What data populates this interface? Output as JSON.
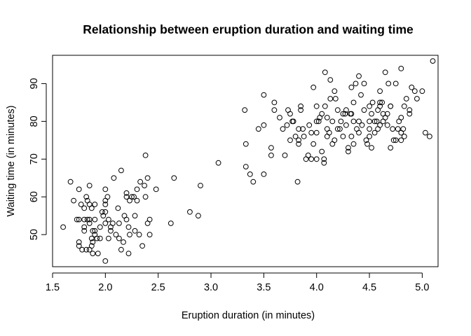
{
  "chart_data": {
    "type": "scatter",
    "title": "Relationship between eruption duration and waiting time",
    "xlabel": "Eruption duration (in minutes)",
    "ylabel": "Waiting time (in minutes)",
    "xlim": [
      1.5,
      5.15
    ],
    "ylim": [
      41.5,
      97.5
    ],
    "xticks": [
      1.5,
      2.0,
      2.5,
      3.0,
      3.5,
      4.0,
      4.5,
      5.0
    ],
    "yticks": [
      50,
      60,
      70,
      80,
      90
    ],
    "xtick_labels": [
      "1.5",
      "2.0",
      "2.5",
      "3.0",
      "3.5",
      "4.0",
      "4.5",
      "5.0"
    ],
    "ytick_labels": [
      "50",
      "60",
      "70",
      "80",
      "90"
    ],
    "grid": false,
    "marker": "open-circle",
    "points": [
      [
        1.6,
        52
      ],
      [
        1.67,
        64
      ],
      [
        1.7,
        59
      ],
      [
        1.73,
        54
      ],
      [
        1.75,
        48
      ],
      [
        1.75,
        47
      ],
      [
        1.75,
        54
      ],
      [
        1.75,
        62
      ],
      [
        1.77,
        58
      ],
      [
        1.78,
        46
      ],
      [
        1.8,
        51
      ],
      [
        1.8,
        54
      ],
      [
        1.8,
        52
      ],
      [
        1.8,
        57
      ],
      [
        1.82,
        60
      ],
      [
        1.82,
        46
      ],
      [
        1.83,
        59
      ],
      [
        1.83,
        54
      ],
      [
        1.85,
        63
      ],
      [
        1.85,
        58
      ],
      [
        1.85,
        54
      ],
      [
        1.85,
        46
      ],
      [
        1.85,
        53
      ],
      [
        1.87,
        57
      ],
      [
        1.87,
        49
      ],
      [
        1.87,
        47
      ],
      [
        1.88,
        51
      ],
      [
        1.88,
        48
      ],
      [
        1.88,
        45
      ],
      [
        1.9,
        58
      ],
      [
        1.9,
        54
      ],
      [
        1.9,
        51
      ],
      [
        1.9,
        50
      ],
      [
        1.92,
        49
      ],
      [
        1.93,
        45
      ],
      [
        1.95,
        52
      ],
      [
        1.95,
        49
      ],
      [
        1.97,
        56
      ],
      [
        1.98,
        55
      ],
      [
        2.0,
        62
      ],
      [
        2.0,
        59
      ],
      [
        2.0,
        58
      ],
      [
        2.0,
        56
      ],
      [
        2.0,
        53
      ],
      [
        2.0,
        43
      ],
      [
        2.02,
        60
      ],
      [
        2.03,
        54
      ],
      [
        2.03,
        49
      ],
      [
        2.05,
        52
      ],
      [
        2.05,
        51
      ],
      [
        2.07,
        53
      ],
      [
        2.08,
        65
      ],
      [
        2.1,
        50
      ],
      [
        2.12,
        57
      ],
      [
        2.13,
        53
      ],
      [
        2.13,
        49
      ],
      [
        2.15,
        67
      ],
      [
        2.15,
        46
      ],
      [
        2.17,
        48
      ],
      [
        2.18,
        55
      ],
      [
        2.2,
        61
      ],
      [
        2.2,
        60
      ],
      [
        2.2,
        54
      ],
      [
        2.22,
        52
      ],
      [
        2.22,
        45
      ],
      [
        2.23,
        59
      ],
      [
        2.23,
        50
      ],
      [
        2.25,
        60
      ],
      [
        2.27,
        60
      ],
      [
        2.28,
        55
      ],
      [
        2.28,
        51
      ],
      [
        2.3,
        59
      ],
      [
        2.3,
        62
      ],
      [
        2.32,
        50
      ],
      [
        2.33,
        64
      ],
      [
        2.35,
        47
      ],
      [
        2.37,
        63
      ],
      [
        2.38,
        71
      ],
      [
        2.38,
        60
      ],
      [
        2.4,
        53
      ],
      [
        2.4,
        65
      ],
      [
        2.42,
        54
      ],
      [
        2.42,
        50
      ],
      [
        2.48,
        62
      ],
      [
        2.62,
        53
      ],
      [
        2.65,
        65
      ],
      [
        2.8,
        56
      ],
      [
        2.88,
        55
      ],
      [
        2.9,
        63
      ],
      [
        3.07,
        69
      ],
      [
        3.32,
        83
      ],
      [
        3.33,
        74
      ],
      [
        3.33,
        68
      ],
      [
        3.37,
        66
      ],
      [
        3.4,
        64
      ],
      [
        3.45,
        78
      ],
      [
        3.5,
        87
      ],
      [
        3.5,
        79
      ],
      [
        3.5,
        66
      ],
      [
        3.57,
        71
      ],
      [
        3.57,
        73
      ],
      [
        3.6,
        83
      ],
      [
        3.6,
        85
      ],
      [
        3.65,
        81
      ],
      [
        3.7,
        71
      ],
      [
        3.72,
        79
      ],
      [
        3.73,
        83
      ],
      [
        3.75,
        75
      ],
      [
        3.75,
        82
      ],
      [
        3.77,
        80
      ],
      [
        3.78,
        80
      ],
      [
        3.8,
        76
      ],
      [
        3.82,
        64
      ],
      [
        3.83,
        78
      ],
      [
        3.83,
        74
      ],
      [
        3.83,
        75
      ],
      [
        3.85,
        83
      ],
      [
        3.85,
        84
      ],
      [
        3.87,
        78
      ],
      [
        3.88,
        76
      ],
      [
        3.9,
        70
      ],
      [
        3.92,
        71
      ],
      [
        3.93,
        79
      ],
      [
        3.95,
        77
      ],
      [
        3.95,
        70
      ],
      [
        3.97,
        89
      ],
      [
        4.0,
        70
      ],
      [
        4.0,
        77
      ],
      [
        4.0,
        80
      ],
      [
        4.0,
        84
      ],
      [
        4.02,
        80
      ],
      [
        4.03,
        81
      ],
      [
        4.05,
        82
      ],
      [
        4.05,
        72
      ],
      [
        4.07,
        69
      ],
      [
        4.07,
        70
      ],
      [
        4.08,
        93
      ],
      [
        4.08,
        84
      ],
      [
        4.1,
        76
      ],
      [
        4.1,
        81
      ],
      [
        4.1,
        78
      ],
      [
        4.12,
        77
      ],
      [
        4.13,
        86
      ],
      [
        4.13,
        91
      ],
      [
        4.15,
        80
      ],
      [
        4.15,
        74
      ],
      [
        4.17,
        88
      ],
      [
        4.17,
        75
      ],
      [
        4.18,
        86
      ],
      [
        4.2,
        83
      ],
      [
        4.2,
        78
      ],
      [
        4.22,
        78
      ],
      [
        4.23,
        80
      ],
      [
        4.25,
        82
      ],
      [
        4.25,
        76
      ],
      [
        4.27,
        82
      ],
      [
        4.28,
        79
      ],
      [
        4.3,
        73
      ],
      [
        4.3,
        72
      ],
      [
        4.32,
        82
      ],
      [
        4.33,
        76
      ],
      [
        4.33,
        82
      ],
      [
        4.33,
        89
      ],
      [
        4.35,
        85
      ],
      [
        4.35,
        74
      ],
      [
        4.35,
        80
      ],
      [
        4.37,
        90
      ],
      [
        4.38,
        78
      ],
      [
        4.4,
        92
      ],
      [
        4.4,
        80
      ],
      [
        4.4,
        77
      ],
      [
        4.42,
        87
      ],
      [
        4.43,
        79
      ],
      [
        4.45,
        83
      ],
      [
        4.45,
        90
      ],
      [
        4.47,
        75
      ],
      [
        4.48,
        74
      ],
      [
        4.5,
        78
      ],
      [
        4.5,
        80
      ],
      [
        4.5,
        84
      ],
      [
        4.5,
        76
      ],
      [
        4.52,
        82
      ],
      [
        4.52,
        73
      ],
      [
        4.53,
        85
      ],
      [
        4.55,
        80
      ],
      [
        4.55,
        77
      ],
      [
        4.57,
        80
      ],
      [
        4.58,
        83
      ],
      [
        4.58,
        78
      ],
      [
        4.6,
        79
      ],
      [
        4.6,
        85
      ],
      [
        4.6,
        84
      ],
      [
        4.6,
        88
      ],
      [
        4.62,
        85
      ],
      [
        4.63,
        82
      ],
      [
        4.63,
        80
      ],
      [
        4.65,
        93
      ],
      [
        4.65,
        81
      ],
      [
        4.67,
        79
      ],
      [
        4.67,
        82
      ],
      [
        4.68,
        90
      ],
      [
        4.7,
        84
      ],
      [
        4.7,
        73
      ],
      [
        4.7,
        84
      ],
      [
        4.72,
        78
      ],
      [
        4.73,
        75
      ],
      [
        4.75,
        90
      ],
      [
        4.75,
        75
      ],
      [
        4.77,
        78
      ],
      [
        4.78,
        80
      ],
      [
        4.8,
        77
      ],
      [
        4.8,
        81
      ],
      [
        4.8,
        75
      ],
      [
        4.8,
        94
      ],
      [
        4.82,
        78
      ],
      [
        4.83,
        76
      ],
      [
        4.83,
        84
      ],
      [
        4.85,
        86
      ],
      [
        4.88,
        83
      ],
      [
        4.88,
        82
      ],
      [
        4.9,
        89
      ],
      [
        4.93,
        88
      ],
      [
        4.95,
        86
      ],
      [
        5.0,
        88
      ],
      [
        5.03,
        77
      ],
      [
        5.07,
        76
      ],
      [
        5.1,
        96
      ],
      [
        3.68,
        78
      ],
      [
        3.97,
        74
      ],
      [
        4.28,
        83
      ]
    ]
  }
}
